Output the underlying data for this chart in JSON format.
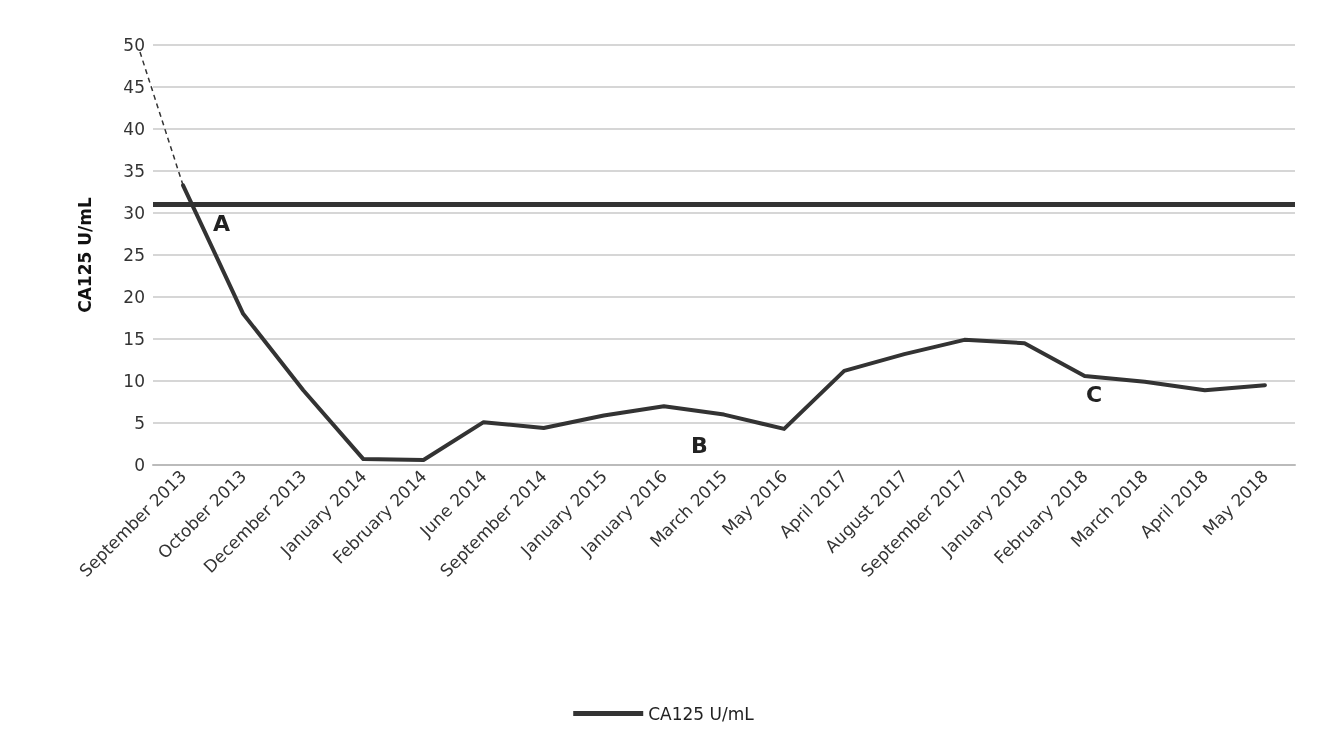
{
  "chart_data": {
    "type": "line",
    "ylabel": "CA125 U/mL",
    "categories": [
      "September 2013",
      "October 2013",
      "December 2013",
      "January 2014",
      "February 2014",
      "June 2014",
      "September 2014",
      "January 2015",
      "January 2016",
      "March 2015",
      "May 2016",
      "April 2017",
      "August 2017",
      "September 2017",
      "January 2018",
      "February 2018",
      "March 2018",
      "April 2018",
      "May 2018"
    ],
    "series": [
      {
        "name": "CA125 U/mL",
        "color": "#333333",
        "values": [
          33.3,
          18,
          8.9,
          0.7,
          0.6,
          5.1,
          4.4,
          5.9,
          7,
          6,
          4.3,
          11.2,
          13.2,
          14.9,
          14.5,
          10.6,
          9.9,
          8.9,
          9.5
        ]
      }
    ],
    "ylim": [
      0,
      50
    ],
    "yticks": [
      0,
      5,
      10,
      15,
      20,
      25,
      30,
      35,
      40,
      45,
      50
    ],
    "grid": "y",
    "legend": "bottom",
    "marker": "none",
    "line_style": "solid",
    "ref_lines": [
      {
        "axis": "y",
        "value": 31,
        "color": "#333333"
      }
    ],
    "annotations": [
      "A",
      "B",
      "C"
    ]
  }
}
